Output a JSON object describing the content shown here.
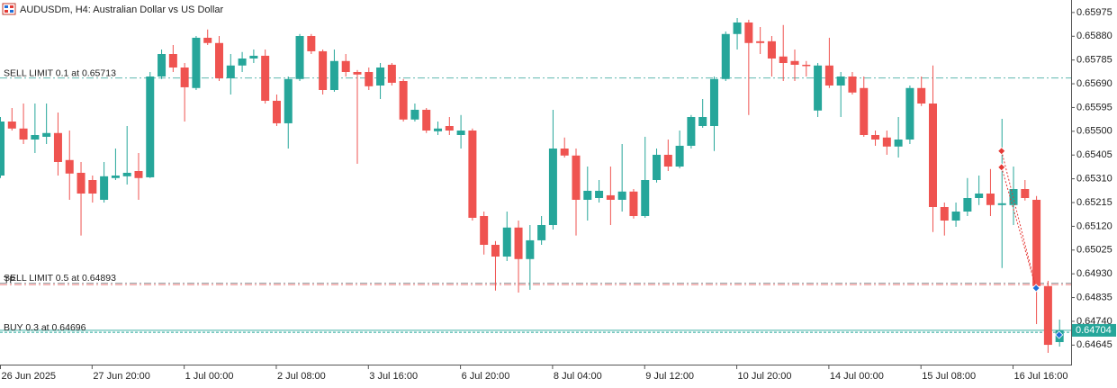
{
  "chart_data": {
    "type": "candlestick",
    "title": "AUDUSDm, H4:  Australian Dollar vs US Dollar",
    "up_color": "#26a69a",
    "down_color": "#ef5350",
    "categories": [
      "26 Jun 2025",
      null,
      null,
      null,
      null,
      null,
      null,
      null,
      "27 Jun 20:00",
      null,
      null,
      null,
      null,
      null,
      null,
      null,
      "1 Jul 00:00",
      null,
      null,
      null,
      null,
      null,
      null,
      null,
      "2 Jul 08:00",
      null,
      null,
      null,
      null,
      null,
      null,
      null,
      "3 Jul 16:00",
      null,
      null,
      null,
      null,
      null,
      null,
      null,
      "6 Jul 20:00",
      null,
      null,
      null,
      null,
      null,
      null,
      null,
      "8 Jul 04:00",
      null,
      null,
      null,
      null,
      null,
      null,
      null,
      "9 Jul 12:00",
      null,
      null,
      null,
      null,
      null,
      null,
      null,
      "10 Jul 20:00",
      null,
      null,
      null,
      null,
      null,
      null,
      null,
      "14 Jul 00:00",
      null,
      null,
      null,
      null,
      null,
      null,
      null,
      "15 Jul 08:00",
      null,
      null,
      null,
      null,
      null,
      null,
      null,
      "16 Jul 16:00",
      null,
      null,
      null,
      null
    ],
    "open": [
      0.65323,
      0.65539,
      0.65511,
      0.65467,
      0.65478,
      0.65493,
      0.65385,
      0.65334,
      0.65305,
      0.65226,
      0.65313,
      0.6532,
      0.65341,
      0.65316,
      0.65719,
      0.65809,
      0.65755,
      0.65673,
      0.65874,
      0.65853,
      0.65712,
      0.65763,
      0.65791,
      0.65802,
      0.65622,
      0.65532,
      0.65709,
      0.65881,
      0.6582,
      0.65665,
      0.65781,
      0.65737,
      0.65737,
      0.65683,
      0.65766,
      0.65701,
      0.65547,
      0.65586,
      0.655,
      0.65521,
      0.65485,
      0.65503,
      0.65161,
      0.65046,
      0.64999,
      0.65115,
      0.64989,
      0.65064,
      0.65125,
      0.65431,
      0.65403,
      0.65226,
      0.65233,
      0.65244,
      0.65226,
      0.65259,
      0.65161,
      0.65305,
      0.65406,
      0.65359,
      0.65442,
      0.65521,
      0.65521,
      0.65709,
      0.65889,
      0.65935,
      0.6586,
      0.6586,
      0.65799,
      0.65781,
      0.65766,
      0.65583,
      0.65763,
      0.65683,
      0.65719,
      0.65673,
      0.65485,
      0.65475,
      0.65439,
      0.65467,
      0.65673,
      0.65611,
      0.65197,
      0.65143,
      0.65179,
      0.65233,
      0.65251,
      0.65205,
      0.65205,
      0.65269,
      0.65226,
      0.64881,
      0.64657
    ],
    "high": [
      0.65557,
      0.65593,
      0.65611,
      0.65611,
      0.65611,
      0.65575,
      0.65503,
      0.65377,
      0.65323,
      0.65377,
      0.65431,
      0.65521,
      0.65413,
      0.65737,
      0.65827,
      0.65845,
      0.65773,
      0.65881,
      0.65907,
      0.65881,
      0.65809,
      0.65817,
      0.65827,
      0.65827,
      0.65647,
      0.65719,
      0.65889,
      0.65889,
      0.65827,
      0.65827,
      0.65809,
      0.65745,
      0.65755,
      0.65773,
      0.65773,
      0.65709,
      0.65611,
      0.65593,
      0.65539,
      0.65557,
      0.65565,
      0.65511,
      0.65179,
      0.65061,
      0.65179,
      0.65143,
      0.65125,
      0.65161,
      0.65586,
      0.65475,
      0.65431,
      0.65359,
      0.65305,
      0.65359,
      0.65449,
      0.65269,
      0.65478,
      0.65431,
      0.65467,
      0.65503,
      0.65565,
      0.65629,
      0.65719,
      0.65899,
      0.65953,
      0.65946,
      0.65917,
      0.65881,
      0.65925,
      0.65827,
      0.65781,
      0.65773,
      0.65874,
      0.65737,
      0.65737,
      0.65719,
      0.65503,
      0.65503,
      0.65557,
      0.65683,
      0.65719,
      0.65763,
      0.65215,
      0.65215,
      0.65313,
      0.65323,
      0.65349,
      0.6555,
      0.65359,
      0.65305,
      0.65241,
      0.64902,
      0.64747
    ],
    "low": [
      0.65313,
      0.65503,
      0.65449,
      0.65413,
      0.65449,
      0.65323,
      0.65226,
      0.65083,
      0.65215,
      0.65215,
      0.65305,
      0.65287,
      0.65226,
      0.65313,
      0.65709,
      0.65737,
      0.65539,
      0.65665,
      0.65845,
      0.65701,
      0.65647,
      0.65737,
      0.65773,
      0.65611,
      0.65521,
      0.65431,
      0.65701,
      0.65809,
      0.65647,
      0.65658,
      0.65719,
      0.6537,
      0.65665,
      0.65629,
      0.65683,
      0.65539,
      0.65539,
      0.65493,
      0.65485,
      0.65485,
      0.65431,
      0.65143,
      0.65007,
      0.64863,
      0.64981,
      0.64855,
      0.64866,
      0.65046,
      0.65107,
      0.65395,
      0.65083,
      0.65143,
      0.65215,
      0.65125,
      0.65179,
      0.65151,
      0.65154,
      0.65295,
      0.65341,
      0.65352,
      0.65431,
      0.65514,
      0.65421,
      0.65701,
      0.65827,
      0.65565,
      0.65809,
      0.65719,
      0.65701,
      0.65701,
      0.65719,
      0.65557,
      0.65673,
      0.65557,
      0.65647,
      0.65478,
      0.65442,
      0.65406,
      0.65395,
      0.65449,
      0.65601,
      0.65097,
      0.65083,
      0.65118,
      0.65161,
      0.65205,
      0.65161,
      0.64953,
      0.65125,
      0.65223,
      0.64729,
      0.64614,
      0.64639
    ],
    "close": [
      0.65539,
      0.65511,
      0.65467,
      0.65485,
      0.65493,
      0.65377,
      0.65331,
      0.65251,
      0.65251,
      0.6532,
      0.65323,
      0.65334,
      0.65313,
      0.65719,
      0.65809,
      0.65755,
      0.65676,
      0.65874,
      0.65853,
      0.65712,
      0.65763,
      0.65791,
      0.65802,
      0.65622,
      0.65532,
      0.65709,
      0.65881,
      0.6582,
      0.65665,
      0.65781,
      0.65737,
      0.65727,
      0.6568,
      0.65755,
      0.65694,
      0.65547,
      0.65586,
      0.65503,
      0.65511,
      0.65503,
      0.65503,
      0.65154,
      0.65046,
      0.64999,
      0.65115,
      0.64989,
      0.65064,
      0.65125,
      0.65431,
      0.65403,
      0.65226,
      0.65262,
      0.65262,
      0.65226,
      0.65259,
      0.65161,
      0.65305,
      0.65406,
      0.65359,
      0.65442,
      0.65557,
      0.65557,
      0.65709,
      0.65889,
      0.65935,
      0.65853,
      0.65853,
      0.65791,
      0.65773,
      0.65766,
      0.65763,
      0.65763,
      0.65683,
      0.65719,
      0.65655,
      0.65485,
      0.65467,
      0.65439,
      0.65467,
      0.65673,
      0.65611,
      0.65197,
      0.65143,
      0.65179,
      0.65233,
      0.65251,
      0.65205,
      0.65212,
      0.65269,
      0.65233,
      0.64881,
      0.64646,
      0.64704
    ],
    "ylim": [
      0.64567,
      0.66025
    ],
    "yticks": [
      0.65975,
      {
        "value": 0.6588,
        "label": "0.65880"
      },
      0.65785,
      {
        "value": 0.6569,
        "label": "0.65690"
      },
      0.65595,
      {
        "value": 0.655,
        "label": "0.65500"
      },
      0.65405,
      {
        "value": 0.6531,
        "label": "0.65310"
      },
      0.65215,
      {
        "value": 0.6512,
        "label": "0.65120"
      },
      0.65025,
      {
        "value": 0.6493,
        "label": "0.64930"
      },
      0.64835,
      {
        "value": 0.6474,
        "label": "0.64740"
      },
      0.64645
    ],
    "last_price": 0.64704,
    "last_price_color": "#26a69a",
    "order_lines": [
      {
        "label": "SELL LIMIT 0.1 at 0.65713",
        "price": 0.65713,
        "color": "#5fb8b0",
        "dash": "8 3 2 3"
      },
      {
        "label": "SELL LIMIT 0.5 at 0.64893",
        "price": 0.64893,
        "color": "#9aa4a8",
        "dash": "8 3 2 3"
      },
      {
        "label": "TP",
        "price": 0.64887,
        "color": "#e57373",
        "dash": "8 3 2 3"
      },
      {
        "label": "BUY 0.3 at 0.64696",
        "price": 0.64696,
        "color": "#26a69a",
        "dash": "3 2"
      }
    ],
    "trades": [
      {
        "open_index": 87,
        "open_price": 0.65421,
        "close_index": 90,
        "close_price": 0.64873
      },
      {
        "open_index": 87,
        "open_price": 0.65356,
        "close_index": 90,
        "close_price": 0.64873
      }
    ],
    "markers": [
      {
        "index": 92,
        "price": 0.64686,
        "color": "#1e6fd9"
      }
    ]
  }
}
